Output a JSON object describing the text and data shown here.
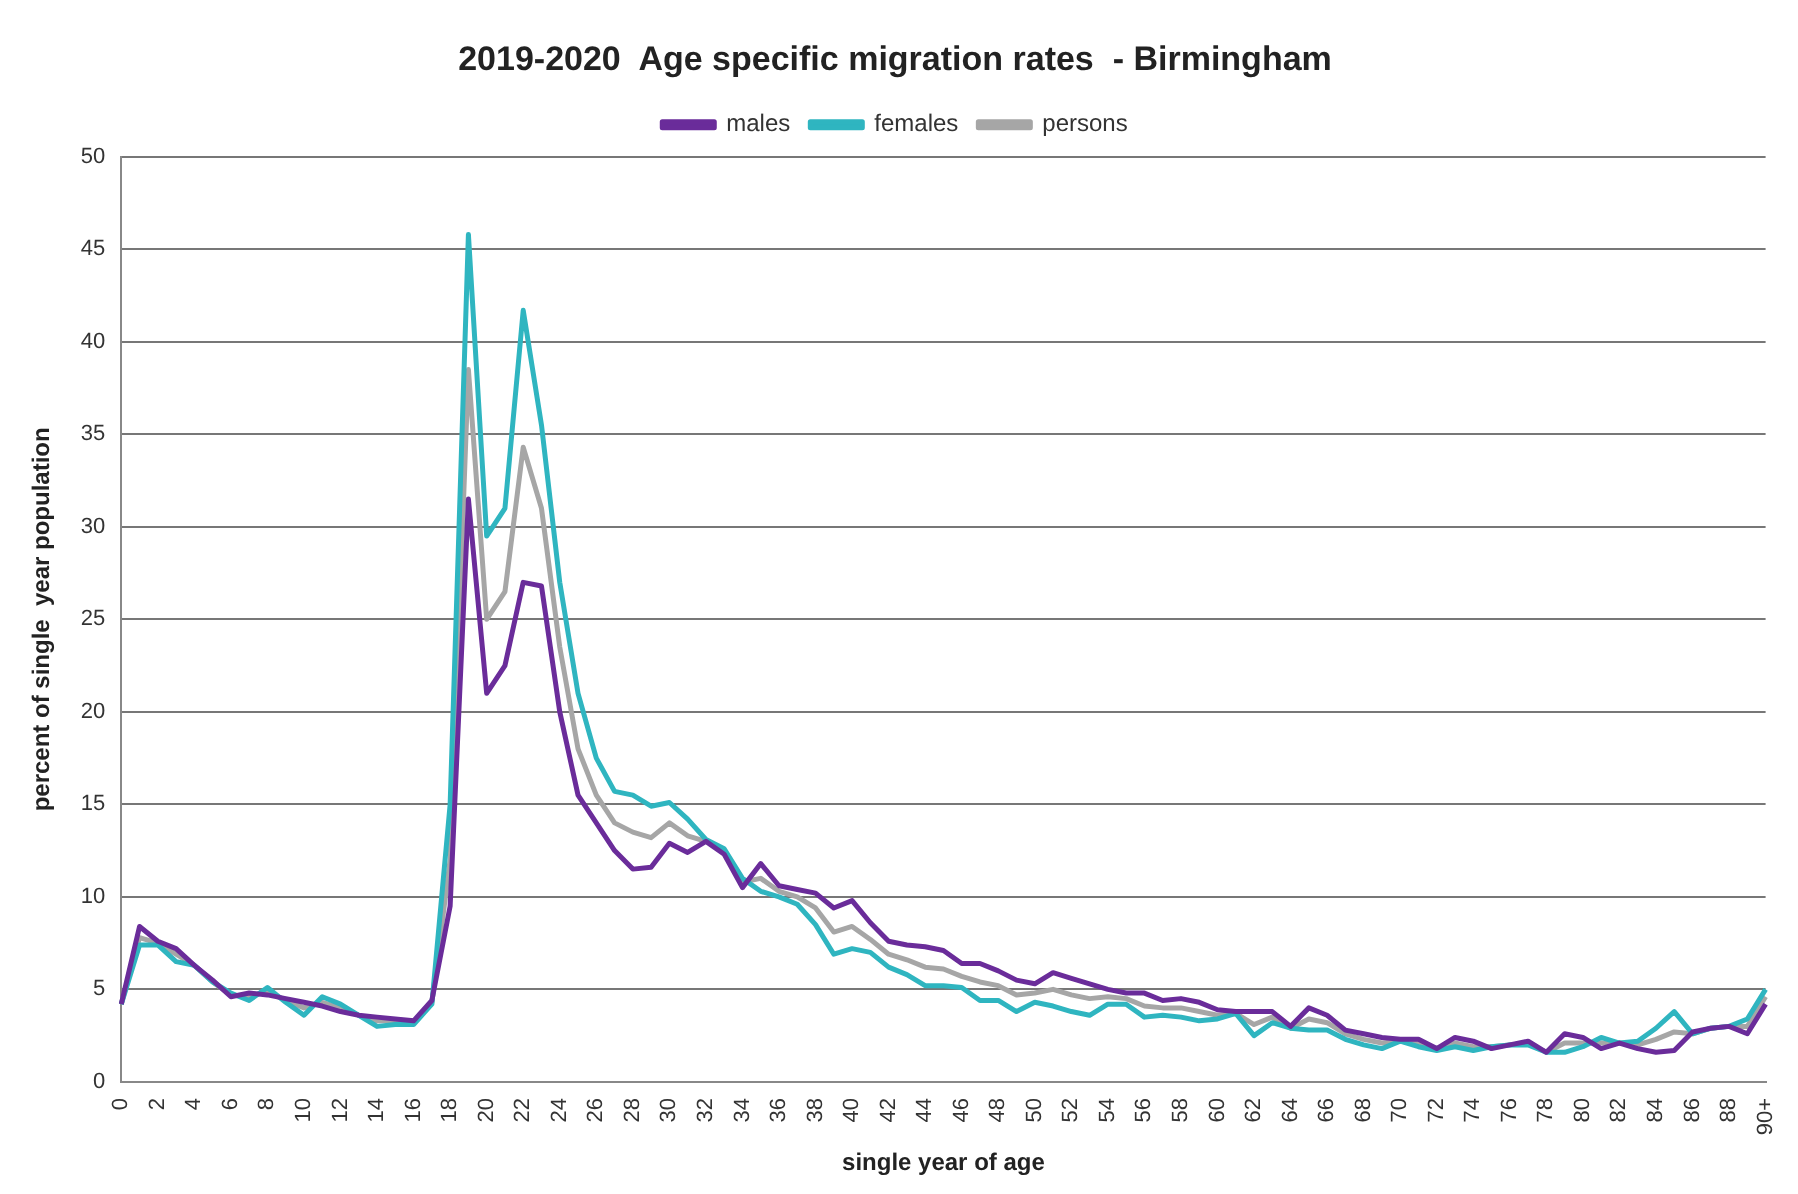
{
  "chart_data": {
    "type": "line",
    "title": "2019-2020  Age specific migration rates  - Birmingham",
    "xlabel": "single year of age",
    "ylabel": "percent of single  year population",
    "categories": [
      "0",
      null,
      "2",
      null,
      "4",
      null,
      "6",
      null,
      "8",
      null,
      "10",
      null,
      "12",
      null,
      "14",
      null,
      "16",
      null,
      "18",
      null,
      "20",
      null,
      "22",
      null,
      "24",
      null,
      "26",
      null,
      "28",
      null,
      "30",
      null,
      "32",
      null,
      "34",
      null,
      "36",
      null,
      "38",
      null,
      "40",
      null,
      "42",
      null,
      "44",
      null,
      "46",
      null,
      "48",
      null,
      "50",
      null,
      "52",
      null,
      "54",
      null,
      "56",
      null,
      "58",
      null,
      "60",
      null,
      "62",
      null,
      "64",
      null,
      "66",
      null,
      "68",
      null,
      "70",
      null,
      "72",
      null,
      "74",
      null,
      "76",
      null,
      "78",
      null,
      "80",
      null,
      "82",
      null,
      "84",
      null,
      "86",
      null,
      "88",
      null,
      "90+"
    ],
    "series": [
      {
        "name": "males",
        "color": "#6a2c9a",
        "values": [
          4.2,
          8.4,
          7.6,
          7.2,
          6.3,
          5.5,
          4.6,
          4.8,
          4.7,
          4.5,
          4.3,
          4.1,
          3.8,
          3.6,
          3.5,
          3.4,
          3.3,
          4.4,
          9.5,
          31.5,
          21,
          22.5,
          27,
          26.8,
          20,
          15.5,
          14,
          12.5,
          11.5,
          11.6,
          12.9,
          12.4,
          13,
          12.3,
          10.5,
          11.8,
          10.6,
          10.4,
          10.2,
          9.4,
          9.8,
          8.6,
          7.6,
          7.4,
          7.3,
          7.1,
          6.4,
          6.4,
          6,
          5.5,
          5.3,
          5.9,
          5.6,
          5.3,
          5,
          4.8,
          4.8,
          4.4,
          4.5,
          4.3,
          3.9,
          3.8,
          3.8,
          3.8,
          3,
          4,
          3.6,
          2.8,
          2.6,
          2.4,
          2.3,
          2.3,
          1.8,
          2.4,
          2.2,
          1.8,
          2,
          2.2,
          1.6,
          2.6,
          2.4,
          1.8,
          2.1,
          1.8,
          1.6,
          1.7,
          2.7,
          2.9,
          3,
          2.6,
          4.2
        ]
      },
      {
        "name": "females",
        "color": "#2fb5c0",
        "values": [
          4.2,
          7.4,
          7.4,
          6.5,
          6.3,
          5.4,
          4.8,
          4.4,
          5.1,
          4.3,
          3.6,
          4.6,
          4.2,
          3.6,
          3,
          3.1,
          3.1,
          4.2,
          15,
          45.8,
          29.5,
          31,
          41.7,
          35.5,
          27,
          21,
          17.5,
          15.7,
          15.5,
          14.9,
          15.1,
          14.2,
          13.1,
          12.6,
          11,
          10.3,
          10,
          9.6,
          8.5,
          6.9,
          7.2,
          7,
          6.2,
          5.8,
          5.2,
          5.2,
          5.1,
          4.4,
          4.4,
          3.8,
          4.3,
          4.1,
          3.8,
          3.6,
          4.2,
          4.2,
          3.5,
          3.6,
          3.5,
          3.3,
          3.4,
          3.7,
          2.5,
          3.2,
          2.9,
          2.8,
          2.8,
          2.3,
          2,
          1.8,
          2.2,
          1.9,
          1.7,
          1.9,
          1.7,
          1.9,
          2,
          2,
          1.6,
          1.6,
          1.9,
          2.4,
          2.1,
          2.2,
          2.9,
          3.8,
          2.6,
          2.9,
          3,
          3.4,
          5
        ]
      },
      {
        "name": "persons",
        "color": "#a6a6a6",
        "values": [
          4.2,
          7.8,
          7.5,
          6.9,
          6.3,
          5.4,
          4.7,
          4.6,
          4.9,
          4.4,
          4,
          4.3,
          4,
          3.6,
          3.3,
          3.3,
          3.2,
          4.3,
          12,
          38.5,
          25,
          26.5,
          34.3,
          31,
          23.5,
          18,
          15.5,
          14,
          13.5,
          13.2,
          14,
          13.3,
          13,
          12.5,
          10.8,
          11,
          10.3,
          10,
          9.4,
          8.1,
          8.4,
          7.7,
          6.9,
          6.6,
          6.2,
          6.1,
          5.7,
          5.4,
          5.2,
          4.7,
          4.8,
          5,
          4.7,
          4.5,
          4.6,
          4.5,
          4.1,
          4,
          4,
          3.8,
          3.6,
          3.7,
          3.1,
          3.5,
          2.9,
          3.4,
          3.2,
          2.6,
          2.3,
          2.1,
          2.2,
          2.1,
          1.8,
          2.1,
          1.9,
          1.9,
          2,
          2.1,
          1.6,
          2.1,
          2.1,
          2.1,
          2.1,
          2,
          2.3,
          2.7,
          2.6,
          2.9,
          3,
          3,
          4.6
        ]
      }
    ],
    "ylim": [
      0,
      50
    ],
    "yticks": [
      0,
      5,
      10,
      15,
      20,
      25,
      30,
      35,
      40,
      45,
      50
    ],
    "grid": "y",
    "legend": "top",
    "marker": "none",
    "line_style": "solid"
  }
}
